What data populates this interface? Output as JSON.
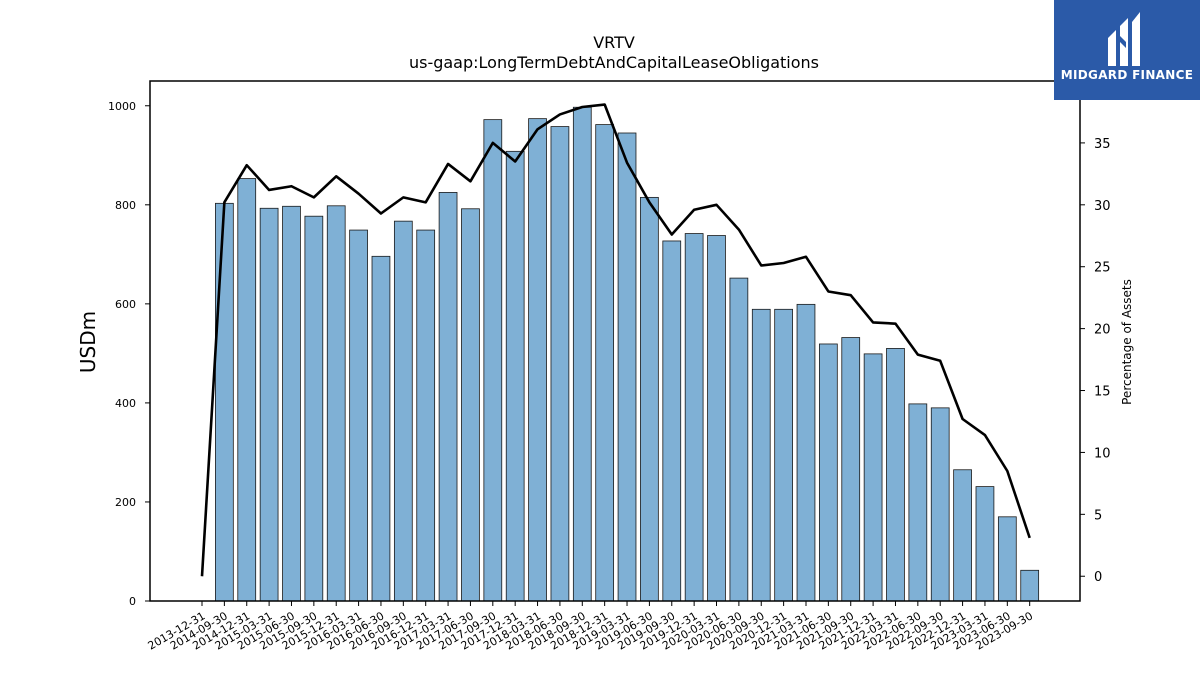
{
  "chart_data": {
    "type": "bar",
    "title": "VRTV",
    "subtitle": "us-gaap:LongTermDebtAndCapitalLeaseObligations",
    "ylabel": "USDm",
    "y2label": "Percentage of Assets",
    "ylim": [
      0,
      1050
    ],
    "y2lim": [
      -2,
      40
    ],
    "yticks": [
      0,
      200,
      400,
      600,
      800,
      1000
    ],
    "y2ticks": [
      0,
      5,
      10,
      15,
      20,
      25,
      30,
      35
    ],
    "categories": [
      "2013-12-31",
      "2014-09-30",
      "2014-12-31",
      "2015-03-31",
      "2015-06-30",
      "2015-09-30",
      "2015-12-31",
      "2016-03-31",
      "2016-06-30",
      "2016-09-30",
      "2016-12-31",
      "2017-03-31",
      "2017-06-30",
      "2017-09-30",
      "2017-12-31",
      "2018-03-31",
      "2018-06-30",
      "2018-09-30",
      "2018-12-31",
      "2019-03-31",
      "2019-06-30",
      "2019-09-30",
      "2019-12-31",
      "2020-03-31",
      "2020-06-30",
      "2020-09-30",
      "2020-12-31",
      "2021-03-31",
      "2021-06-30",
      "2021-09-30",
      "2021-12-31",
      "2022-03-31",
      "2022-06-30",
      "2022-09-30",
      "2022-12-31",
      "2023-03-31",
      "2023-06-30",
      "2023-09-30"
    ],
    "series": [
      {
        "kind": "bar",
        "axis": "left",
        "values": [
          null,
          803,
          853,
          793,
          797,
          777,
          798,
          749,
          696,
          767,
          749,
          825,
          792,
          972,
          908,
          974,
          958,
          997,
          962,
          945,
          815,
          727,
          742,
          738,
          652,
          589,
          589,
          599,
          519,
          532,
          499,
          510,
          398,
          390,
          265,
          231,
          170,
          62
        ]
      },
      {
        "kind": "line",
        "axis": "right",
        "values": [
          0,
          30.2,
          33.2,
          31.2,
          31.5,
          30.6,
          32.3,
          30.9,
          29.3,
          30.6,
          30.2,
          33.3,
          31.9,
          35.0,
          33.5,
          36.1,
          37.3,
          37.9,
          38.1,
          33.4,
          30.2,
          27.6,
          29.6,
          30.0,
          28.0,
          25.1,
          25.3,
          25.8,
          23.0,
          22.7,
          20.5,
          20.4,
          17.9,
          17.4,
          12.7,
          11.4,
          8.5,
          3.1
        ]
      }
    ],
    "colors": {
      "bar_fill": "#7fb0d5",
      "bar_edge": "#1a1a1a",
      "line": "#000000"
    }
  },
  "logo": {
    "text": "MIDGARD FINANCE",
    "background": "#2b5aa8"
  }
}
